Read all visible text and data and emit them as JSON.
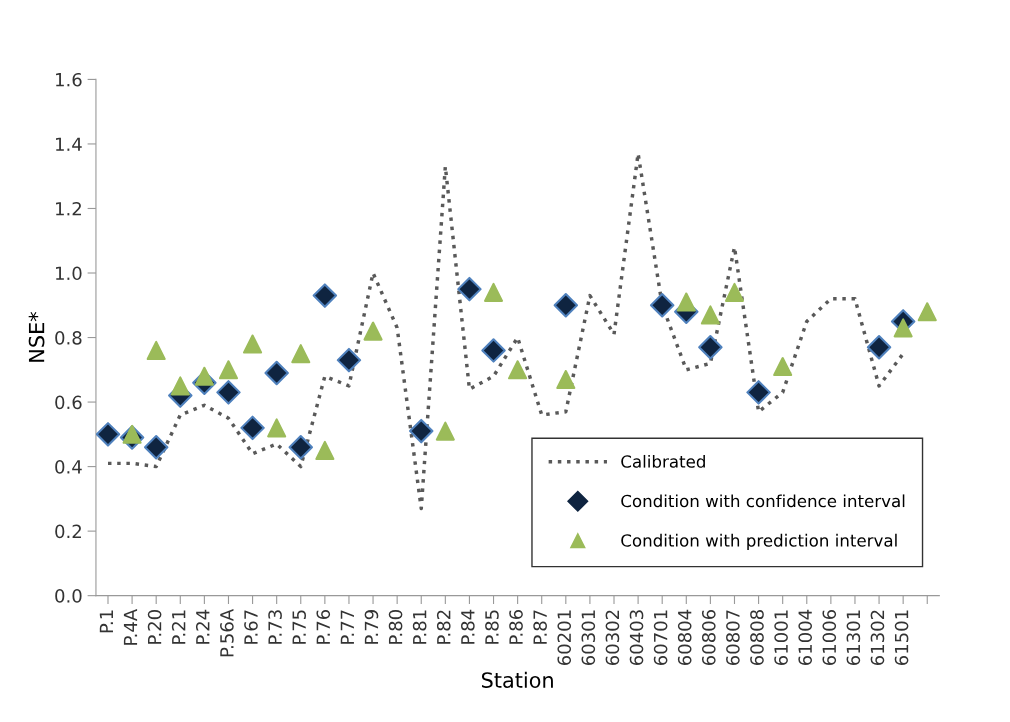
{
  "chart_data": {
    "type": "line",
    "xlabel": "Station",
    "ylabel": "NSE*",
    "categories": [
      "P.1",
      "P.4A",
      "P.20",
      "P.21",
      "P.24",
      "P.56A",
      "P.67",
      "P.73",
      "P.75",
      "P.76",
      "P.77",
      "P.79",
      "P.80",
      "P.81",
      "P.82",
      "P.84",
      "P.85",
      "P.86",
      "P.87",
      "60201",
      "60301",
      "60302",
      "60403",
      "60701",
      "60804",
      "60806",
      "60807",
      "60808",
      "61001",
      "61004",
      "61006",
      "61301",
      "61302",
      "61501",
      null
    ],
    "series": [
      {
        "name": "Calibrated",
        "color": "#595959",
        "line_style": "dotted",
        "marker": "none",
        "values": [
          0.41,
          0.41,
          0.4,
          0.56,
          0.59,
          0.55,
          0.44,
          0.47,
          0.4,
          0.68,
          0.65,
          1.0,
          0.83,
          0.27,
          1.33,
          0.64,
          0.68,
          0.8,
          0.56,
          0.57,
          0.93,
          0.81,
          1.37,
          0.9,
          0.7,
          0.72,
          1.08,
          0.57,
          0.63,
          0.85,
          0.92,
          0.92,
          0.65,
          0.75,
          null
        ]
      },
      {
        "name": "Condition with confidence interval",
        "type": "scatter",
        "color": "#0f2440",
        "marker": "diamond",
        "values": [
          0.5,
          0.49,
          0.46,
          0.62,
          0.66,
          0.63,
          0.52,
          0.69,
          0.46,
          0.93,
          0.73,
          null,
          null,
          0.51,
          null,
          0.95,
          0.76,
          null,
          null,
          0.9,
          null,
          null,
          null,
          0.9,
          0.88,
          0.77,
          null,
          0.63,
          null,
          null,
          null,
          null,
          0.77,
          0.85,
          null
        ]
      },
      {
        "name": "Condition with prediction interval",
        "type": "scatter",
        "color": "#9bbb59",
        "marker": "triangle",
        "values": [
          null,
          0.5,
          0.76,
          0.65,
          0.68,
          0.7,
          0.78,
          0.52,
          0.75,
          0.45,
          null,
          0.82,
          null,
          null,
          0.51,
          null,
          0.94,
          0.7,
          null,
          0.67,
          null,
          null,
          null,
          null,
          0.91,
          0.87,
          0.94,
          null,
          0.71,
          null,
          null,
          null,
          null,
          0.83,
          0.88
        ]
      }
    ],
    "ylim": [
      0,
      1.6
    ],
    "yticks": [
      {
        "value": 0,
        "label": "0.0"
      },
      {
        "value": 0.2,
        "label": "0.2"
      },
      {
        "value": 0.4,
        "label": "0.4"
      },
      {
        "value": 0.6,
        "label": "0.6"
      },
      {
        "value": 0.8,
        "label": "0.8"
      },
      {
        "value": 1.0,
        "label": "1.0"
      },
      {
        "value": 1.2,
        "label": "1.2"
      },
      {
        "value": 1.4,
        "label": "1.4"
      },
      {
        "value": 1.6,
        "label": "1.6"
      }
    ],
    "grid": false,
    "legend": "lower right"
  }
}
